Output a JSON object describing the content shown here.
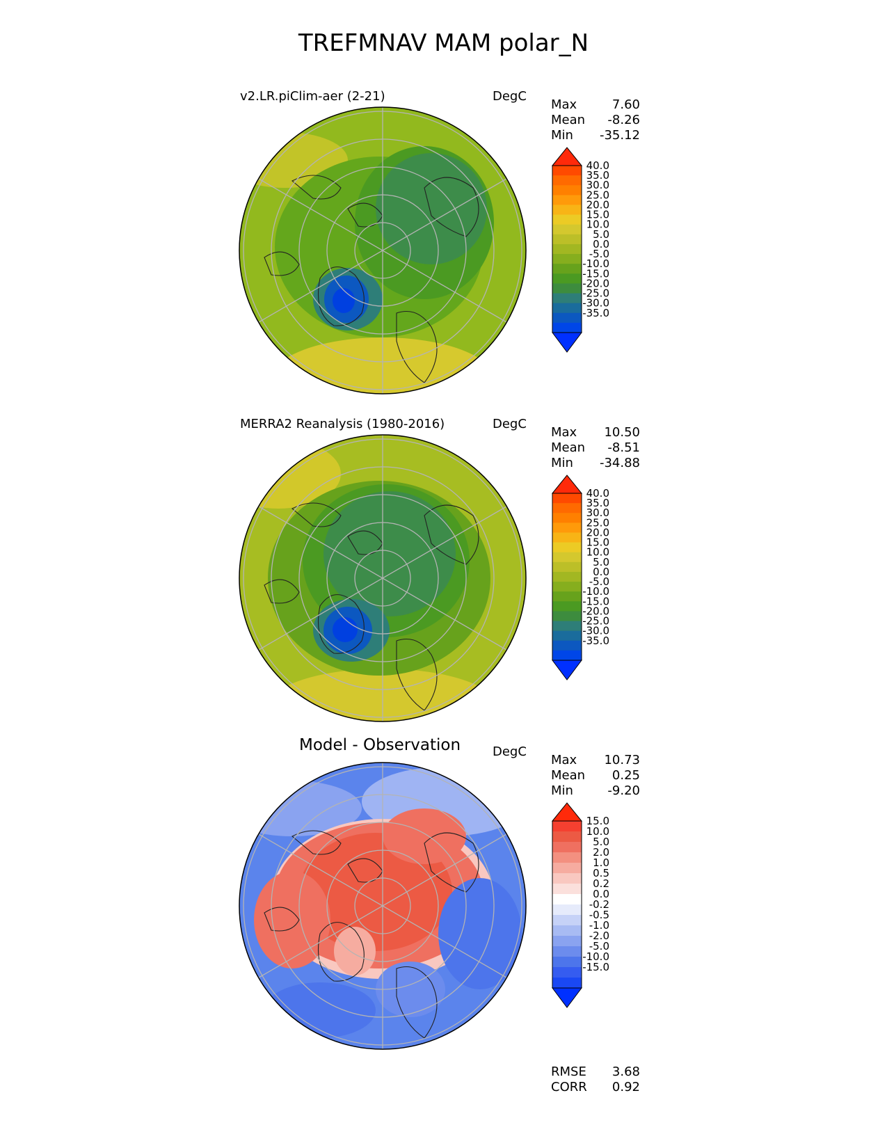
{
  "figure_title": "TREFMNAV MAM polar_N",
  "panels": [
    {
      "title": "v2.LR.piClim-aer (2-21)",
      "units": "DegC",
      "stats": {
        "max_label": "Max",
        "max": "7.60",
        "mean_label": "Mean",
        "mean": "-8.26",
        "min_label": "Min",
        "min": "-35.12"
      }
    },
    {
      "title": "MERRA2 Reanalysis (1980-2016)",
      "units": "DegC",
      "stats": {
        "max_label": "Max",
        "max": "10.50",
        "mean_label": "Mean",
        "mean": "-8.51",
        "min_label": "Min",
        "min": "-34.88"
      }
    },
    {
      "title": "Model - Observation",
      "units": "DegC",
      "stats": {
        "max_label": "Max",
        "max": "10.73",
        "mean_label": "Mean",
        "mean": "0.25",
        "min_label": "Min",
        "min": "-9.20"
      },
      "metrics": {
        "rmse_label": "RMSE",
        "rmse": "3.68",
        "corr_label": "CORR",
        "corr": "0.92"
      }
    }
  ],
  "colorbars": {
    "absolute": {
      "ticks": [
        "40.0",
        "35.0",
        "30.0",
        "25.0",
        "20.0",
        "15.0",
        "10.0",
        "5.0",
        "0.0",
        "-5.0",
        "-10.0",
        "-15.0",
        "-20.0",
        "-25.0",
        "-30.0",
        "-35.0"
      ],
      "colors": [
        "#ff2a0a",
        "#ff4a00",
        "#ff6a00",
        "#ff8000",
        "#ff9a0a",
        "#f8b416",
        "#eccb25",
        "#d4c82e",
        "#bcbf28",
        "#a2b722",
        "#86ae1e",
        "#67a21c",
        "#4b9a22",
        "#3d8c3e",
        "#2e7e78",
        "#1a6c9c",
        "#0c58c0",
        "#0046e8",
        "#0030ff"
      ]
    },
    "difference": {
      "ticks": [
        "15.0",
        "10.0",
        "5.0",
        "2.0",
        "1.0",
        "0.5",
        "0.2",
        "0.0",
        "-0.2",
        "-0.5",
        "-1.0",
        "-2.0",
        "-5.0",
        "-10.0",
        "-15.0"
      ],
      "colors": [
        "#ff2a0a",
        "#f54030",
        "#ec5a44",
        "#ef7060",
        "#f39080",
        "#f6aca0",
        "#f9c8c0",
        "#fbe0dc",
        "#ffffff",
        "#e6ebfb",
        "#c6d2f7",
        "#a8bbf3",
        "#8aa3f0",
        "#6c8ced",
        "#4d75eb",
        "#355cf0",
        "#1a48f4",
        "#0030ff"
      ]
    }
  },
  "map_fields": {
    "panel_1": {
      "background": "#92b91e",
      "features": [
        "cold-greenland",
        "cold-siberia",
        "green-arctic-ocean",
        "warm-south-rim"
      ]
    },
    "panel_2": {
      "background": "#a7bd22",
      "features": [
        "cold-greenland",
        "cold-siberia",
        "green-arctic-ocean",
        "warm-south-rim"
      ]
    },
    "panel_3": {
      "background": "#5b84ec",
      "features": [
        "warm-arctic-core",
        "cool-ocean-rim"
      ]
    }
  }
}
